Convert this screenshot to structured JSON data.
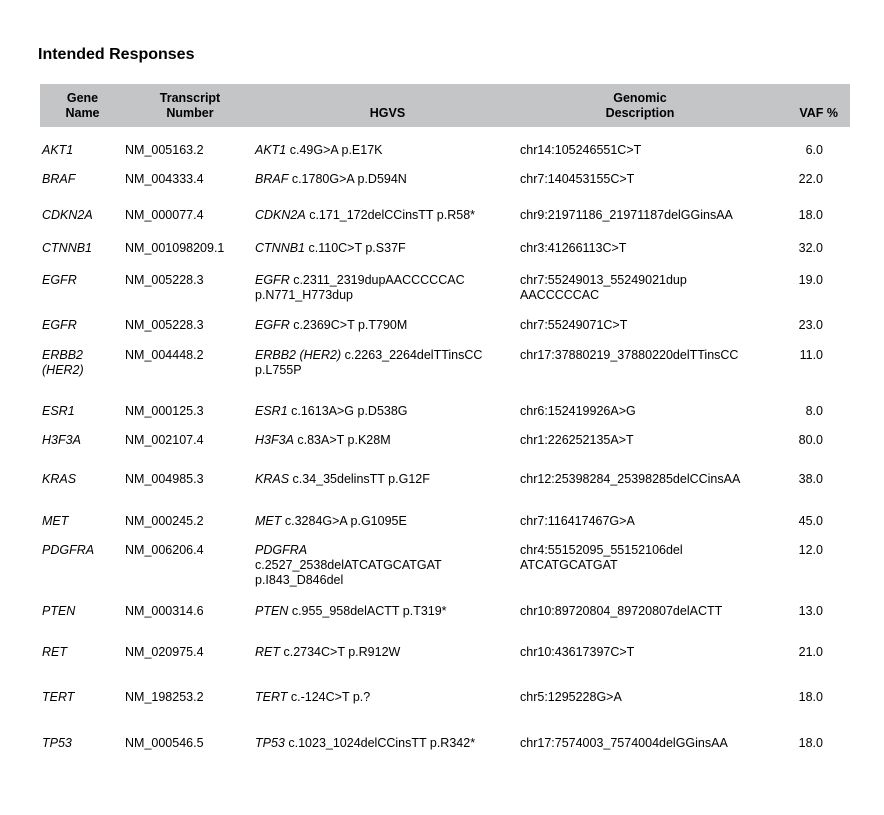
{
  "page": {
    "title": "Intended Responses"
  },
  "table": {
    "headers": [
      {
        "label": "Gene\nName"
      },
      {
        "label": "Transcript\nNumber"
      },
      {
        "label": "HGVS"
      },
      {
        "label": "Genomic\nDescription"
      },
      {
        "label": "VAF %"
      }
    ],
    "rows": [
      {
        "gene": "AKT1",
        "transcript": "NM_005163.2",
        "hgvs_gene": "AKT1",
        "hgvs_rest": " c.49G>A p.E17K",
        "genomic": "chr14:105246551C>T",
        "vaf": "6.0"
      },
      {
        "gene": "BRAF",
        "transcript": "NM_004333.4",
        "hgvs_gene": "BRAF",
        "hgvs_rest": " c.1780G>A p.D594N",
        "genomic": "chr7:140453155C>T",
        "vaf": "22.0"
      },
      {
        "gene": "CDKN2A",
        "transcript": "NM_000077.4",
        "hgvs_gene": "CDKN2A",
        "hgvs_rest": " c.171_172delCCinsTT p.R58*",
        "genomic": "chr9:21971186_21971187delGGinsAA",
        "vaf": "18.0"
      },
      {
        "gene": "CTNNB1",
        "transcript": "NM_001098209.1",
        "hgvs_gene": "CTNNB1",
        "hgvs_rest": " c.110C>T p.S37F",
        "genomic": "chr3:41266113C>T",
        "vaf": "32.0"
      },
      {
        "gene": "EGFR",
        "transcript": "NM_005228.3",
        "hgvs_gene": "EGFR",
        "hgvs_rest": " c.2311_2319dupAACCCCCAC\np.N771_H773dup",
        "genomic": "chr7:55249013_55249021dup\nAACCCCCAC",
        "vaf": "19.0"
      },
      {
        "gene": "EGFR",
        "transcript": "NM_005228.3",
        "hgvs_gene": "EGFR",
        "hgvs_rest": " c.2369C>T p.T790M",
        "genomic": "chr7:55249071C>T",
        "vaf": "23.0"
      },
      {
        "gene": "ERBB2\n(HER2)",
        "transcript": "NM_004448.2",
        "hgvs_gene": "ERBB2 (HER2)",
        "hgvs_rest": " c.2263_2264delTTinsCC\np.L755P",
        "genomic": "chr17:37880219_37880220delTTinsCC",
        "vaf": "11.0"
      },
      {
        "gene": "ESR1",
        "transcript": "NM_000125.3",
        "hgvs_gene": "ESR1",
        "hgvs_rest": " c.1613A>G p.D538G",
        "genomic": "chr6:152419926A>G",
        "vaf": "8.0"
      },
      {
        "gene": "H3F3A",
        "transcript": "NM_002107.4",
        "hgvs_gene": "H3F3A",
        "hgvs_rest": " c.83A>T p.K28M",
        "genomic": "chr1:226252135A>T",
        "vaf": "80.0"
      },
      {
        "gene": "KRAS",
        "transcript": "NM_004985.3",
        "hgvs_gene": "KRAS",
        "hgvs_rest": " c.34_35delinsTT p.G12F",
        "genomic": "chr12:25398284_25398285delCCinsAA",
        "vaf": "38.0"
      },
      {
        "gene": "MET",
        "transcript": "NM_000245.2",
        "hgvs_gene": "MET",
        "hgvs_rest": " c.3284G>A p.G1095E",
        "genomic": "chr7:116417467G>A",
        "vaf": "45.0"
      },
      {
        "gene": "PDGFRA",
        "transcript": "NM_006206.4",
        "hgvs_gene": "PDGFRA",
        "hgvs_rest": "\nc.2527_2538delATCATGCATGAT\np.I843_D846del",
        "genomic": "chr4:55152095_55152106del\nATCATGCATGAT",
        "vaf": "12.0"
      },
      {
        "gene": "PTEN",
        "transcript": "NM_000314.6",
        "hgvs_gene": "PTEN",
        "hgvs_rest": " c.955_958delACTT p.T319*",
        "genomic": "chr10:89720804_89720807delACTT",
        "vaf": "13.0"
      },
      {
        "gene": "RET",
        "transcript": "NM_020975.4",
        "hgvs_gene": "RET",
        "hgvs_rest": " c.2734C>T p.R912W",
        "genomic": "chr10:43617397C>T",
        "vaf": "21.0"
      },
      {
        "gene": "TERT",
        "transcript": "NM_198253.2",
        "hgvs_gene": "TERT",
        "hgvs_rest": " c.-124C>T p.?",
        "genomic": "chr5:1295228G>A",
        "vaf": "18.0"
      },
      {
        "gene": "TP53",
        "transcript": "NM_000546.5",
        "hgvs_gene": "TP53",
        "hgvs_rest": " c.1023_1024delCCinsTT p.R342*",
        "genomic": "chr17:7574003_7574004delGGinsAA",
        "vaf": "18.0"
      }
    ]
  }
}
